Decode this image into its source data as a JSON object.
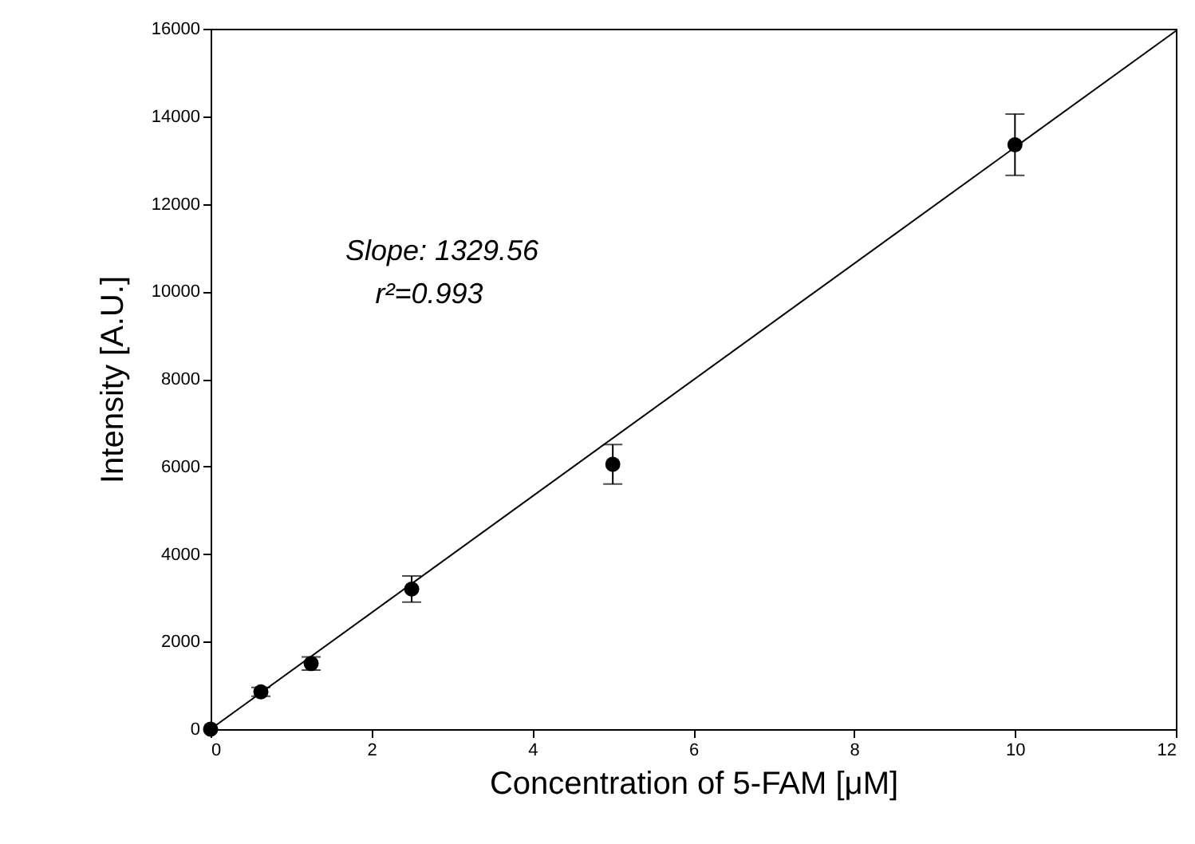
{
  "chart_data": {
    "type": "scatter",
    "xlabel": "Concentration of 5-FAM [μM]",
    "ylabel": "Intensity [A.U.]",
    "x": [
      0,
      0.625,
      1.25,
      2.5,
      5,
      10
    ],
    "series": [
      {
        "color": "#000000",
        "marker": "circle",
        "values": [
          0,
          850,
          1500,
          3200,
          6050,
          13350
        ],
        "errors": [
          null,
          100,
          150,
          300,
          450,
          700
        ]
      },
      {
        "type": "line",
        "color": "#000000",
        "x": [
          0,
          12
        ],
        "values": [
          0,
          15950
        ]
      }
    ],
    "annotations": [
      "Slope: 1329.56",
      "r²=0.993"
    ],
    "xlim": [
      0,
      12
    ],
    "xticks": [
      0,
      2,
      4,
      6,
      8,
      10,
      12
    ],
    "ylim": [
      0,
      16000
    ],
    "yticks": [
      0,
      2000,
      4000,
      6000,
      8000,
      10000,
      12000,
      14000,
      16000
    ],
    "grid": false
  }
}
